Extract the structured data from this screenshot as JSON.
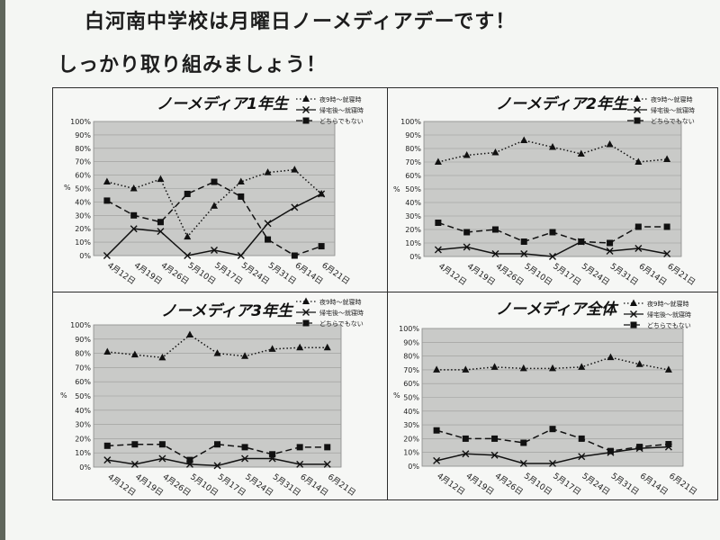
{
  "header": {
    "line1": "白河南中学校は月曜日ノーメディアデーです！",
    "line2": "しっかり取り組みましょう！"
  },
  "chart_data": [
    {
      "type": "line",
      "title": "ノーメディア1年生",
      "ylabel": "%",
      "ylim": [
        0,
        100
      ],
      "yticks": [
        "0%",
        "10%",
        "20%",
        "30%",
        "40%",
        "50%",
        "60%",
        "70%",
        "80%",
        "90%",
        "100%"
      ],
      "categories": [
        "4月12日",
        "4月19日",
        "4月26日",
        "5月10日",
        "5月17日",
        "5月24日",
        "5月31日",
        "6月14日",
        "6月21日"
      ],
      "legend_position": "top-right",
      "grid": true,
      "series": [
        {
          "name": "夜9時～就寝時",
          "style": "dotted",
          "marker": "triangle",
          "values": [
            55,
            50,
            57,
            14,
            37,
            55,
            62,
            64,
            46
          ]
        },
        {
          "name": "帰宅後～就寝時",
          "style": "solid",
          "marker": "x",
          "values": [
            0,
            20,
            18,
            0,
            4,
            0,
            24,
            36,
            46
          ]
        },
        {
          "name": "どちらでもない",
          "style": "dashed",
          "marker": "square",
          "values": [
            41,
            30,
            25,
            46,
            55,
            44,
            12,
            0,
            7
          ]
        }
      ]
    },
    {
      "type": "line",
      "title": "ノーメディア2年生",
      "ylabel": "%",
      "ylim": [
        0,
        100
      ],
      "yticks": [
        "0%",
        "10%",
        "20%",
        "30%",
        "40%",
        "50%",
        "60%",
        "70%",
        "80%",
        "90%",
        "100%"
      ],
      "categories": [
        "4月12日",
        "4月19日",
        "4月26日",
        "5月10日",
        "5月17日",
        "5月24日",
        "5月31日",
        "6月14日",
        "6月21日"
      ],
      "legend_position": "top-right",
      "grid": true,
      "series": [
        {
          "name": "夜9時～就寝時",
          "style": "dotted",
          "marker": "triangle",
          "values": [
            70,
            75,
            77,
            86,
            81,
            76,
            83,
            70,
            72
          ]
        },
        {
          "name": "帰宅後～就寝時",
          "style": "solid",
          "marker": "x",
          "values": [
            5,
            7,
            2,
            2,
            0,
            11,
            4,
            6,
            2
          ]
        },
        {
          "name": "どちらでもない",
          "style": "dashed",
          "marker": "square",
          "values": [
            25,
            18,
            20,
            11,
            18,
            11,
            10,
            22,
            22
          ]
        }
      ]
    },
    {
      "type": "line",
      "title": "ノーメディア3年生",
      "ylabel": "%",
      "ylim": [
        0,
        100
      ],
      "yticks": [
        "0%",
        "10%",
        "20%",
        "30%",
        "40%",
        "50%",
        "60%",
        "70%",
        "80%",
        "90%",
        "100%"
      ],
      "categories": [
        "4月12日",
        "4月19日",
        "4月26日",
        "5月10日",
        "5月17日",
        "5月24日",
        "5月31日",
        "6月14日",
        "6月21日"
      ],
      "legend_position": "top-right",
      "grid": true,
      "series": [
        {
          "name": "夜9時～就寝時",
          "style": "dotted",
          "marker": "triangle",
          "values": [
            81,
            79,
            77,
            93,
            80,
            78,
            83,
            84,
            84
          ]
        },
        {
          "name": "帰宅後～就寝時",
          "style": "solid",
          "marker": "x",
          "values": [
            5,
            2,
            6,
            2,
            1,
            6,
            6,
            2,
            2
          ]
        },
        {
          "name": "どちらでもない",
          "style": "dashed",
          "marker": "square",
          "values": [
            15,
            16,
            16,
            5,
            16,
            14,
            9,
            14,
            14
          ]
        }
      ]
    },
    {
      "type": "line",
      "title": "ノーメディア全体",
      "ylabel": "%",
      "ylim": [
        0,
        100
      ],
      "yticks": [
        "0%",
        "10%",
        "20%",
        "30%",
        "40%",
        "50%",
        "60%",
        "70%",
        "80%",
        "90%",
        "100%"
      ],
      "categories": [
        "4月12日",
        "4月19日",
        "4月26日",
        "5月10日",
        "5月17日",
        "5月24日",
        "5月31日",
        "6月14日",
        "6月21日"
      ],
      "legend_position": "top-right",
      "grid": true,
      "series": [
        {
          "name": "夜9時～就寝時",
          "style": "dotted",
          "marker": "triangle",
          "values": [
            70,
            70,
            72,
            71,
            71,
            72,
            79,
            74,
            70
          ]
        },
        {
          "name": "帰宅後～就寝時",
          "style": "solid",
          "marker": "x",
          "values": [
            4,
            9,
            8,
            2,
            2,
            7,
            10,
            13,
            14
          ]
        },
        {
          "name": "どちらでもない",
          "style": "dashed",
          "marker": "square",
          "values": [
            26,
            20,
            20,
            17,
            27,
            20,
            11,
            14,
            16
          ]
        }
      ]
    }
  ]
}
